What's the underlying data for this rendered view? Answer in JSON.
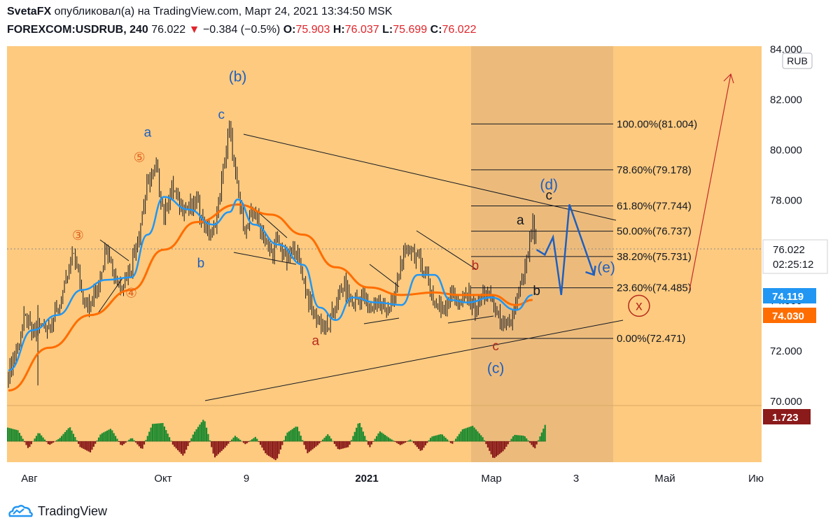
{
  "header": {
    "author": "SvetaFX",
    "published_text": "опубликовал(а) на TradingView.com, Март 24, 2021 13:34:50 MSK",
    "symbol": "FOREXCOM:USDRUB, 240",
    "last": "76.022",
    "change": "−0.384 (−0.5%)",
    "o_label": "O:",
    "o": "75.903",
    "h_label": "H:",
    "h": "76.037",
    "l_label": "L:",
    "l": "75.699",
    "c_label": "C:",
    "c": "76.022"
  },
  "footer": {
    "brand": "TradingView"
  },
  "colors": {
    "plot_bg": "#fdca7f",
    "fib_zone": "#e9b97a",
    "price_line": "#131722",
    "ma_fast": "#2196f3",
    "ma_slow": "#ff6d00",
    "up": "#1b8a2e",
    "down": "#8a1a1a",
    "forecast": "#1f5fbf",
    "red_label": "#b52a1c",
    "orange_label": "#e0621e"
  },
  "chart_data": {
    "type": "line",
    "symbol": "USDRUB",
    "currency": "RUB",
    "timeframe": "240",
    "y_range": [
      69.8,
      84.1
    ],
    "y_ticks": [
      "84.000",
      "82.000",
      "80.000",
      "78.000",
      "76.000",
      "74.000",
      "72.000",
      "70.000"
    ],
    "x_ticks": [
      "Авг",
      "Окт",
      "9",
      "2021",
      "Мар",
      "3",
      "Май",
      "Ию"
    ],
    "price": [
      {
        "x": 0,
        "y": 71.1
      },
      {
        "x": 2,
        "y": 72.0
      },
      {
        "x": 4,
        "y": 73.3
      },
      {
        "x": 6,
        "y": 72.6
      },
      {
        "x": 8,
        "y": 73.0
      },
      {
        "x": 10,
        "y": 72.9
      },
      {
        "x": 12,
        "y": 73.6
      },
      {
        "x": 14,
        "y": 74.6
      },
      {
        "x": 16,
        "y": 75.9
      },
      {
        "x": 18,
        "y": 74.2
      },
      {
        "x": 20,
        "y": 73.7
      },
      {
        "x": 22,
        "y": 74.7
      },
      {
        "x": 24,
        "y": 76.2
      },
      {
        "x": 26,
        "y": 74.9
      },
      {
        "x": 28,
        "y": 74.6
      },
      {
        "x": 30,
        "y": 75.4
      },
      {
        "x": 32,
        "y": 76.8
      },
      {
        "x": 34,
        "y": 78.6
      },
      {
        "x": 36,
        "y": 79.3
      },
      {
        "x": 38,
        "y": 77.4
      },
      {
        "x": 40,
        "y": 78.5
      },
      {
        "x": 42,
        "y": 77.8
      },
      {
        "x": 44,
        "y": 77.6
      },
      {
        "x": 46,
        "y": 77.9
      },
      {
        "x": 48,
        "y": 76.9
      },
      {
        "x": 50,
        "y": 76.6
      },
      {
        "x": 52,
        "y": 78.6
      },
      {
        "x": 54,
        "y": 80.9
      },
      {
        "x": 56,
        "y": 78.2
      },
      {
        "x": 58,
        "y": 76.7
      },
      {
        "x": 60,
        "y": 77.6
      },
      {
        "x": 62,
        "y": 76.6
      },
      {
        "x": 64,
        "y": 75.9
      },
      {
        "x": 66,
        "y": 76.3
      },
      {
        "x": 68,
        "y": 75.6
      },
      {
        "x": 70,
        "y": 76.1
      },
      {
        "x": 72,
        "y": 74.9
      },
      {
        "x": 74,
        "y": 73.6
      },
      {
        "x": 76,
        "y": 73.1
      },
      {
        "x": 78,
        "y": 72.8
      },
      {
        "x": 80,
        "y": 73.9
      },
      {
        "x": 82,
        "y": 74.6
      },
      {
        "x": 84,
        "y": 73.8
      },
      {
        "x": 86,
        "y": 74.2
      },
      {
        "x": 88,
        "y": 73.6
      },
      {
        "x": 90,
        "y": 73.9
      },
      {
        "x": 92,
        "y": 73.6
      },
      {
        "x": 94,
        "y": 73.8
      },
      {
        "x": 96,
        "y": 75.6
      },
      {
        "x": 98,
        "y": 76.1
      },
      {
        "x": 100,
        "y": 75.6
      },
      {
        "x": 102,
        "y": 75.1
      },
      {
        "x": 104,
        "y": 73.9
      },
      {
        "x": 106,
        "y": 73.6
      },
      {
        "x": 108,
        "y": 74.3
      },
      {
        "x": 110,
        "y": 73.9
      },
      {
        "x": 112,
        "y": 74.2
      },
      {
        "x": 114,
        "y": 73.7
      },
      {
        "x": 116,
        "y": 74.3
      },
      {
        "x": 118,
        "y": 74.0
      },
      {
        "x": 120,
        "y": 73.2
      },
      {
        "x": 122,
        "y": 72.8
      },
      {
        "x": 124,
        "y": 73.8
      },
      {
        "x": 126,
        "y": 75.1
      },
      {
        "x": 128,
        "y": 76.9
      },
      {
        "x": 129,
        "y": 76.0
      }
    ],
    "ma_fast": [
      {
        "x": 0,
        "y": 71.2
      },
      {
        "x": 6,
        "y": 72.8
      },
      {
        "x": 12,
        "y": 73.4
      },
      {
        "x": 18,
        "y": 74.4
      },
      {
        "x": 24,
        "y": 74.8
      },
      {
        "x": 30,
        "y": 74.9
      },
      {
        "x": 34,
        "y": 76.6
      },
      {
        "x": 38,
        "y": 78.1
      },
      {
        "x": 44,
        "y": 77.6
      },
      {
        "x": 50,
        "y": 77.0
      },
      {
        "x": 54,
        "y": 77.5
      },
      {
        "x": 56,
        "y": 78.0
      },
      {
        "x": 60,
        "y": 77.0
      },
      {
        "x": 66,
        "y": 76.2
      },
      {
        "x": 72,
        "y": 75.4
      },
      {
        "x": 76,
        "y": 73.7
      },
      {
        "x": 80,
        "y": 73.2
      },
      {
        "x": 84,
        "y": 74.1
      },
      {
        "x": 90,
        "y": 73.9
      },
      {
        "x": 96,
        "y": 73.8
      },
      {
        "x": 100,
        "y": 75.0
      },
      {
        "x": 104,
        "y": 75.0
      },
      {
        "x": 108,
        "y": 74.0
      },
      {
        "x": 112,
        "y": 73.9
      },
      {
        "x": 118,
        "y": 74.1
      },
      {
        "x": 124,
        "y": 73.6
      },
      {
        "x": 128,
        "y": 74.2
      }
    ],
    "ma_slow": [
      {
        "x": 0,
        "y": 70.4
      },
      {
        "x": 10,
        "y": 72.1
      },
      {
        "x": 20,
        "y": 73.4
      },
      {
        "x": 30,
        "y": 74.4
      },
      {
        "x": 38,
        "y": 76.0
      },
      {
        "x": 46,
        "y": 77.1
      },
      {
        "x": 56,
        "y": 77.8
      },
      {
        "x": 64,
        "y": 77.4
      },
      {
        "x": 72,
        "y": 76.6
      },
      {
        "x": 80,
        "y": 75.3
      },
      {
        "x": 88,
        "y": 74.5
      },
      {
        "x": 96,
        "y": 74.2
      },
      {
        "x": 104,
        "y": 74.3
      },
      {
        "x": 110,
        "y": 74.2
      },
      {
        "x": 118,
        "y": 74.2
      },
      {
        "x": 124,
        "y": 73.8
      },
      {
        "x": 128,
        "y": 74.0
      }
    ],
    "fib_levels": [
      {
        "label": "100.00%(81.004)",
        "value": 81.004
      },
      {
        "label": "78.60%(79.178)",
        "value": 79.178
      },
      {
        "label": "61.80%(77.744)",
        "value": 77.744
      },
      {
        "label": "50.00%(76.737)",
        "value": 76.737
      },
      {
        "label": "38.20%(75.731)",
        "value": 75.731
      },
      {
        "label": "23.60%(74.485)",
        "value": 74.485
      },
      {
        "label": "0.00%(72.471)",
        "value": 72.471
      }
    ],
    "forecast_path": [
      {
        "x": 129,
        "y": 76.0
      },
      {
        "x": 131,
        "y": 75.8
      },
      {
        "x": 133,
        "y": 76.5
      },
      {
        "x": 135,
        "y": 74.2
      },
      {
        "x": 137,
        "y": 77.8
      },
      {
        "x": 143,
        "y": 75.0
      }
    ],
    "wave_labels": [
      {
        "text": "(b)",
        "x": 56,
        "y": 82.7,
        "color": "blue"
      },
      {
        "text": "c",
        "x": 52,
        "y": 81.2,
        "color": "blue"
      },
      {
        "text": "a",
        "x": 34,
        "y": 80.5,
        "color": "blue"
      },
      {
        "text": "⑤",
        "x": 32,
        "y": 79.5,
        "color": "orange"
      },
      {
        "text": "③",
        "x": 17,
        "y": 76.4,
        "color": "orange"
      },
      {
        "text": "④",
        "x": 30,
        "y": 74.1,
        "color": "orange"
      },
      {
        "text": "b",
        "x": 47,
        "y": 75.3,
        "color": "blue"
      },
      {
        "text": "a",
        "x": 75,
        "y": 72.2,
        "color": "red"
      },
      {
        "text": "b",
        "x": 114,
        "y": 75.2,
        "color": "red"
      },
      {
        "text": "c",
        "x": 119,
        "y": 72.0,
        "color": "red"
      },
      {
        "text": "(c)",
        "x": 119,
        "y": 71.1,
        "color": "blue"
      },
      {
        "text": "(d)",
        "x": 132,
        "y": 78.4,
        "color": "blue"
      },
      {
        "text": "c",
        "x": 132,
        "y": 78.0,
        "color": "black"
      },
      {
        "text": "a",
        "x": 125,
        "y": 77.0,
        "color": "black"
      },
      {
        "text": "b",
        "x": 129,
        "y": 74.2,
        "color": "black"
      },
      {
        "text": "(e)",
        "x": 146,
        "y": 75.1,
        "color": "blue"
      },
      {
        "text": "x",
        "x": 154,
        "y": 73.6,
        "color": "red"
      }
    ],
    "price_tags": [
      {
        "text": "76.022",
        "sub": "02:25:12",
        "value": 76.022,
        "style": "last"
      },
      {
        "text": "74.119",
        "value": 74.119,
        "style": "blue"
      },
      {
        "text": "74.030",
        "value": 74.03,
        "style": "orange"
      },
      {
        "text": "1.723",
        "style": "osc"
      }
    ],
    "oscillator": {
      "last": 1.723,
      "values": [
        1.5,
        1.2,
        -0.8,
        1.0,
        -0.4,
        0.3,
        1.6,
        -0.6,
        -1.2,
        0.8,
        1.4,
        -0.5,
        0.4,
        -0.9,
        1.9,
        2.0,
        -0.4,
        -1.6,
        0.9,
        2.5,
        -1.8,
        -0.7,
        0.6,
        -0.3,
        0.5,
        -1.4,
        -2.1,
        0.9,
        1.7,
        -1.3,
        -0.4,
        0.8,
        -0.9,
        -0.6,
        2.2,
        -0.7,
        1.1,
        0.3,
        -0.4,
        0.2,
        -1.1,
        0.5,
        0.8,
        -0.3,
        1.3,
        1.7,
        0.4,
        -1.9,
        -1.0,
        0.7,
        0.6,
        -0.8,
        1.8
      ]
    },
    "legend": "none",
    "grid": false
  }
}
